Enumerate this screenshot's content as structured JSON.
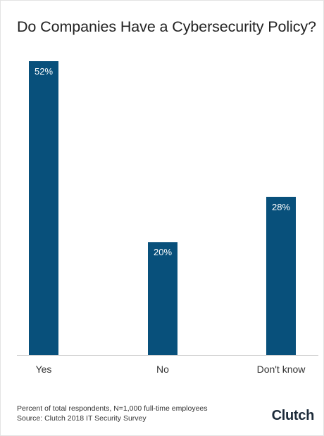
{
  "chart_data": {
    "type": "bar",
    "title": "Do Companies Have a Cybersecurity Policy?",
    "categories": [
      "Yes",
      "No",
      "Don't know"
    ],
    "values": [
      52,
      20,
      28
    ],
    "data_labels": [
      "52%",
      "20%",
      "28%"
    ],
    "ylim": [
      0,
      52
    ],
    "grid": false,
    "legend": "none",
    "bar_color": "#08507b",
    "xlabel": "",
    "ylabel": ""
  },
  "footnote": {
    "line1": "Percent of total respondents, N=1,000 full-time employees",
    "line2": "Source: Clutch 2018 IT Security Survey"
  },
  "brand": "Clutch"
}
